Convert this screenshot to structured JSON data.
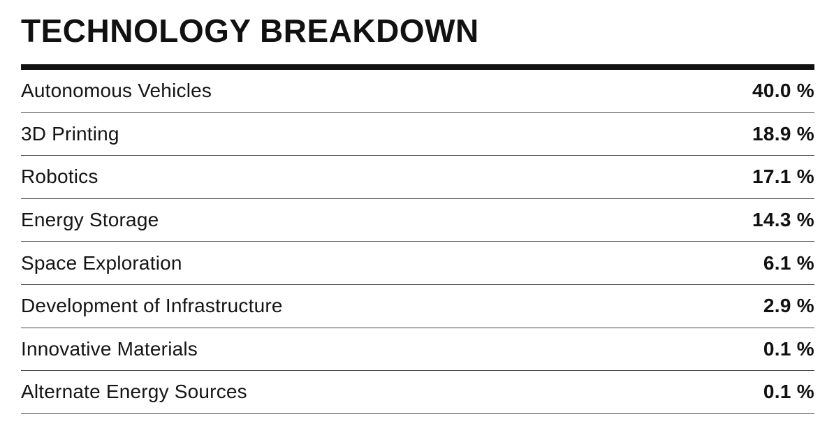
{
  "page": {
    "title": "TECHNOLOGY BREAKDOWN"
  },
  "colors": {
    "background": "#ffffff",
    "text": "#111111",
    "title_rule": "#111111",
    "row_divider": "#4a4a4a"
  },
  "table": {
    "rows": [
      {
        "label": "Autonomous Vehicles",
        "value": "40.0 %"
      },
      {
        "label": "3D Printing",
        "value": "18.9 %"
      },
      {
        "label": "Robotics",
        "value": "17.1 %"
      },
      {
        "label": "Energy Storage",
        "value": "14.3 %"
      },
      {
        "label": "Space Exploration",
        "value": "6.1 %"
      },
      {
        "label": "Development of Infrastructure",
        "value": "2.9 %"
      },
      {
        "label": "Innovative Materials",
        "value": "0.1 %"
      },
      {
        "label": "Alternate Energy Sources",
        "value": "0.1 %"
      }
    ]
  },
  "chart_data": {
    "type": "table",
    "title": "TECHNOLOGY BREAKDOWN",
    "categories": [
      "Autonomous Vehicles",
      "3D Printing",
      "Robotics",
      "Energy Storage",
      "Space Exploration",
      "Development of Infrastructure",
      "Innovative Materials",
      "Alternate Energy Sources"
    ],
    "values": [
      40.0,
      18.9,
      17.1,
      14.3,
      6.1,
      2.9,
      0.1,
      0.1
    ],
    "unit": "%",
    "value_format": "one-decimal percent, right-aligned, bold"
  }
}
